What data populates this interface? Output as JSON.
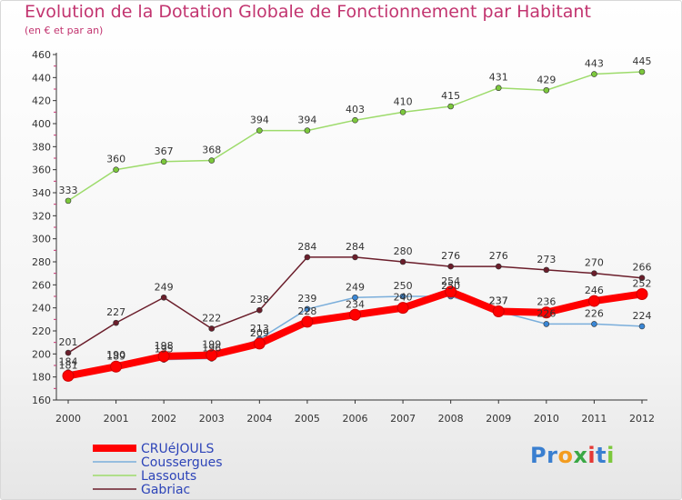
{
  "chart_data": {
    "type": "line",
    "title": "Evolution de la Dotation Globale de Fonctionnement par Habitant",
    "subtitle": "(en € et par an)",
    "xlabel": "",
    "ylabel": "",
    "ylim": [
      160,
      460
    ],
    "y_ticks": [
      160,
      180,
      200,
      220,
      240,
      260,
      280,
      300,
      320,
      340,
      360,
      380,
      400,
      420,
      440,
      460
    ],
    "x": [
      "2000",
      "2001",
      "2002",
      "2003",
      "2004",
      "2005",
      "2006",
      "2007",
      "2008",
      "2009",
      "2010",
      "2011",
      "2012"
    ],
    "grid": false,
    "legend_position": "bottom-left",
    "series": [
      {
        "name": "Gabriac",
        "color": "#6b1e2b",
        "marker": "#6b1e2b",
        "values": [
          201,
          227,
          249,
          222,
          238,
          284,
          284,
          280,
          276,
          276,
          273,
          270,
          266
        ]
      },
      {
        "name": "Lassouts",
        "color": "#9ddb6b",
        "marker": "#7cc83c",
        "values": [
          333,
          360,
          367,
          368,
          394,
          394,
          403,
          410,
          415,
          431,
          429,
          443,
          445
        ]
      },
      {
        "name": "Coussergues",
        "color": "#7aaedb",
        "marker": "#3a86d4",
        "values": [
          184,
          190,
          195,
          196,
          213,
          239,
          249,
          250,
          250,
          237,
          226,
          226,
          224
        ]
      },
      {
        "name": "CRUéJOULS",
        "color": "#ff0000",
        "marker": "#ff0000",
        "thick": true,
        "values": [
          181,
          189,
          198,
          199,
          209,
          228,
          234,
          240,
          254,
          237,
          236,
          246,
          252
        ]
      }
    ],
    "legend_order": [
      "CRUéJOULS",
      "Coussergues",
      "Lassouts",
      "Gabriac"
    ]
  },
  "logo": {
    "letters": [
      "P",
      "r",
      "o",
      "x",
      "i",
      "t",
      "i"
    ],
    "colors": [
      "#3a7fd0",
      "#3a7fd0",
      "#f39c1f",
      "#3aa845",
      "#e53935",
      "#3a7fd0",
      "#7cc83c"
    ]
  }
}
